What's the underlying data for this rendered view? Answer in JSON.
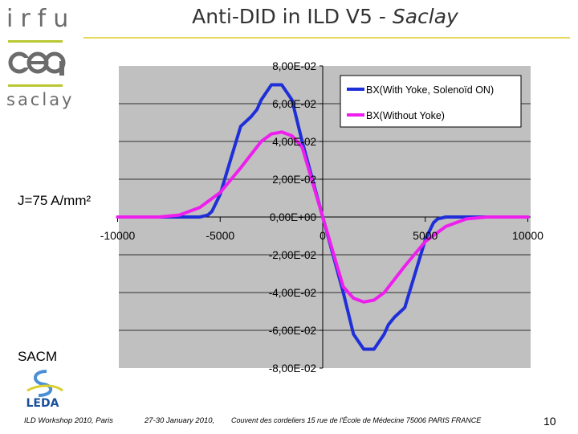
{
  "header": {
    "logo_irfu": "irfu",
    "logo_cea": "cea",
    "logo_saclay": "saclay",
    "title_main": "Anti-DID in ILD V5 - ",
    "title_italic": "Saclay"
  },
  "annotations": {
    "current_density": "J=75 A/mm²",
    "group": "SACM",
    "logo_leda": "LEDA"
  },
  "footer": {
    "workshop": "ILD Workshop 2010, Paris",
    "dates": "27-30 January 2010,",
    "venue": "Couvent des cordeliers 15 rue de l'École de Médecine 75006 PARIS FRANCE",
    "page": "10"
  },
  "colors": {
    "plot_bg": "#c0c0c0",
    "series_with_yoke": "#1f2fd8",
    "series_without_yoke": "#ee1fee",
    "accent_green": "#b9c832",
    "accent_yellow": "#e6d85a"
  },
  "chart_data": {
    "type": "line",
    "title": "",
    "xlabel": "",
    "ylabel": "",
    "xlim": [
      -10000,
      10000
    ],
    "ylim": [
      -0.08,
      0.08
    ],
    "grid": "horizontal",
    "legend_position": "top-right",
    "x_ticks": [
      "-10000",
      "-5000",
      "0",
      "5000",
      "10000"
    ],
    "y_ticks": [
      "8,00E-02",
      "6,00E-02",
      "4,00E-02",
      "2,00E-02",
      "0,00E+00",
      "-2,00E-02",
      "-4,00E-02",
      "-6,00E-02",
      "-8,00E-02"
    ],
    "series": [
      {
        "name": "BX(With Yoke, Solenoïd ON)",
        "color": "#1f2fd8",
        "x": [
          -10000,
          -8000,
          -6000,
          -5600,
          -5400,
          -5000,
          -4500,
          -4000,
          -3500,
          -3200,
          -3000,
          -2500,
          -2000,
          -1500,
          -1000,
          -500,
          0,
          500,
          1000,
          1500,
          2000,
          2500,
          3000,
          3200,
          3500,
          4000,
          4500,
          5000,
          5400,
          5600,
          6000,
          8000,
          10000
        ],
        "y": [
          0,
          0,
          0,
          0.001,
          0.003,
          0.012,
          0.03,
          0.048,
          0.053,
          0.057,
          0.062,
          0.07,
          0.07,
          0.062,
          0.04,
          0.02,
          0,
          -0.02,
          -0.04,
          -0.062,
          -0.07,
          -0.07,
          -0.062,
          -0.057,
          -0.053,
          -0.048,
          -0.03,
          -0.012,
          -0.003,
          -0.001,
          0,
          0,
          0
        ]
      },
      {
        "name": "BX(Without Yoke)",
        "color": "#ee1fee",
        "x": [
          -10000,
          -8000,
          -7000,
          -6000,
          -5000,
          -4000,
          -3000,
          -2500,
          -2000,
          -1500,
          -1000,
          0,
          1000,
          1500,
          2000,
          2500,
          3000,
          4000,
          5000,
          6000,
          7000,
          8000,
          10000
        ],
        "y": [
          0,
          0,
          0.001,
          0.005,
          0.013,
          0.026,
          0.04,
          0.044,
          0.045,
          0.043,
          0.037,
          0,
          -0.037,
          -0.043,
          -0.045,
          -0.044,
          -0.04,
          -0.026,
          -0.013,
          -0.005,
          -0.001,
          0,
          0
        ]
      }
    ]
  }
}
